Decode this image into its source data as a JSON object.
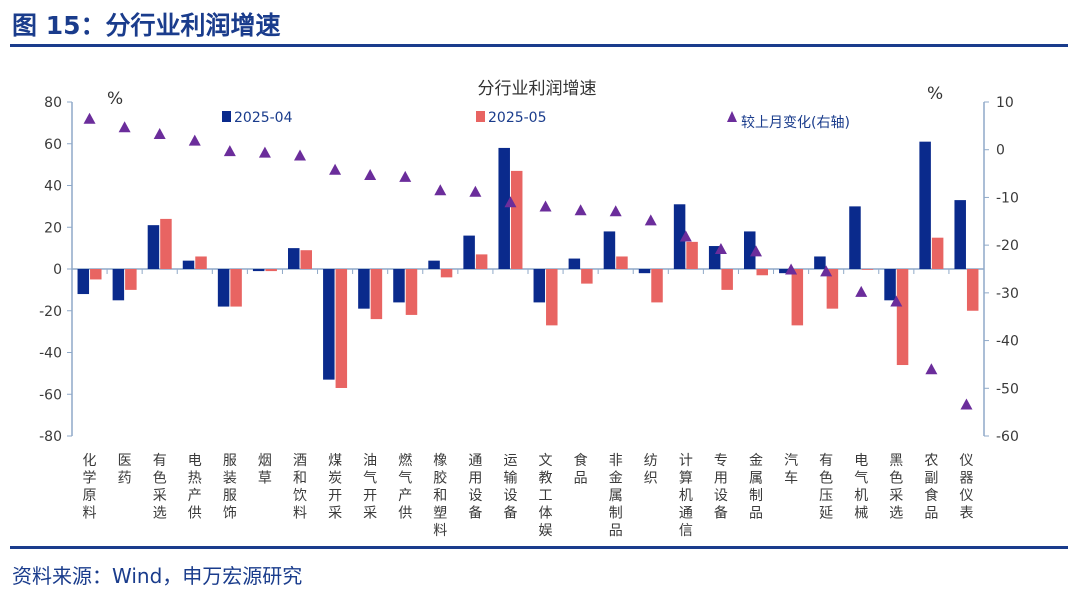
{
  "figure": {
    "title": "图 15：分行业利润增速",
    "source": "资料来源：Wind，申万宏源研究"
  },
  "chart_data": {
    "type": "bar",
    "title": "分行业利润增速",
    "left_unit": "%",
    "right_unit": "%",
    "ylim": [
      -80,
      80
    ],
    "y_ticks": [
      -80,
      -60,
      -40,
      -20,
      0,
      20,
      40,
      60,
      80
    ],
    "y2lim": [
      -60,
      10
    ],
    "y2_ticks": [
      -60,
      -50,
      -40,
      -30,
      -20,
      -10,
      0,
      10
    ],
    "categories": [
      "化学原料",
      "医药",
      "有色采选",
      "电热产供",
      "服装服饰",
      "烟草",
      "酒和饮料",
      "煤炭开采",
      "油气开采",
      "燃气产供",
      "橡胶和塑料",
      "通用设备",
      "运输设备",
      "文教工体娱",
      "食品",
      "非金属制品",
      "纺织",
      "计算机通信",
      "专用设备",
      "金属制品",
      "汽车",
      "有色压延",
      "电气机械",
      "黑色采选",
      "农副食品",
      "仪器仪表"
    ],
    "series": [
      {
        "name": "2025-04",
        "type": "bar",
        "axis": "left",
        "color": "#0a2a8c",
        "values": [
          -12,
          -15,
          21,
          4,
          -18,
          -1,
          10,
          -53,
          -19,
          -16,
          4,
          16,
          58,
          -16,
          5,
          18,
          -2,
          31,
          11,
          18,
          -2,
          6,
          30,
          -15,
          61,
          33
        ]
      },
      {
        "name": "2025-05",
        "type": "bar",
        "axis": "left",
        "color": "#e86462",
        "values": [
          -5,
          -10,
          24,
          6,
          -18,
          -1,
          9,
          -57,
          -24,
          -22,
          -4,
          7,
          47,
          -27,
          -7,
          6,
          -16,
          13,
          -10,
          -3,
          -27,
          -19,
          0,
          -46,
          15,
          -20
        ]
      },
      {
        "name": "较上月变化(右轴)",
        "type": "scatter",
        "axis": "right",
        "color": "#6b2d9b",
        "values": [
          6.5,
          4.7,
          3.3,
          1.9,
          -0.3,
          -0.6,
          -1.2,
          -4.2,
          -5.3,
          -5.7,
          -8.5,
          -8.8,
          -11,
          -11.9,
          -12.7,
          -12.9,
          -14.8,
          -18.2,
          -20.8,
          -21.3,
          -25.1,
          -25.5,
          -29.8,
          -31.8,
          -46,
          -53.4
        ]
      }
    ],
    "legend": "top",
    "grid": false
  }
}
